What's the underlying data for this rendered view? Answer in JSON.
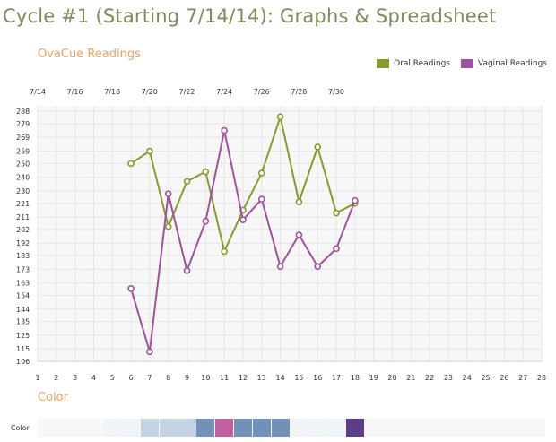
{
  "page": {
    "title": "Cycle #1 (Starting 7/14/14): Graphs & Spreadsheet",
    "chart_section_title": "OvaCue Readings",
    "color_section_title": "Color",
    "color_row_label": "Color"
  },
  "colors": {
    "title": "#7a8d5a",
    "section": "#f0a05a",
    "oral": "#8a9a2a",
    "vaginal": "#a050a0",
    "plot_bg": "#f7f7f7",
    "grid": "#e6e6e6"
  },
  "chart_data": {
    "type": "line",
    "title": "",
    "legend": {
      "position": "top-right",
      "entries": [
        "Oral Readings",
        "Vaginal Readings"
      ]
    },
    "x": [
      1,
      2,
      3,
      4,
      5,
      6,
      7,
      8,
      9,
      10,
      11,
      12,
      13,
      14,
      15,
      16,
      17,
      18,
      19,
      20,
      21,
      22,
      23,
      24,
      25,
      26,
      27,
      28
    ],
    "xlim": [
      1,
      28
    ],
    "date_ticks": [
      {
        "day": 1,
        "label": "7/14"
      },
      {
        "day": 3,
        "label": "7/16"
      },
      {
        "day": 5,
        "label": "7/18"
      },
      {
        "day": 7,
        "label": "7/20"
      },
      {
        "day": 9,
        "label": "7/22"
      },
      {
        "day": 11,
        "label": "7/24"
      },
      {
        "day": 13,
        "label": "7/26"
      },
      {
        "day": 15,
        "label": "7/28"
      },
      {
        "day": 17,
        "label": "7/30"
      }
    ],
    "y_ticks": [
      106,
      115,
      125,
      135,
      144,
      154,
      163,
      173,
      183,
      192,
      202,
      211,
      221,
      230,
      240,
      250,
      259,
      269,
      279,
      288
    ],
    "ylim": [
      106,
      292
    ],
    "grid": true,
    "series": [
      {
        "name": "Oral Readings",
        "color": "#8a9a2a",
        "points": [
          [
            6,
            250
          ],
          [
            7,
            259
          ],
          [
            8,
            204
          ],
          [
            9,
            237
          ],
          [
            10,
            244
          ],
          [
            11,
            186
          ],
          [
            12,
            216
          ],
          [
            13,
            243
          ],
          [
            14,
            284
          ],
          [
            15,
            222
          ],
          [
            16,
            262
          ],
          [
            17,
            214
          ],
          [
            18,
            221
          ]
        ]
      },
      {
        "name": "Vaginal Readings",
        "color": "#a050a0",
        "points": [
          [
            6,
            159
          ],
          [
            7,
            113
          ],
          [
            8,
            228
          ],
          [
            9,
            172
          ],
          [
            10,
            208
          ],
          [
            11,
            274
          ],
          [
            12,
            209
          ],
          [
            13,
            224
          ],
          [
            14,
            175
          ],
          [
            15,
            198
          ],
          [
            16,
            175
          ],
          [
            17,
            188
          ],
          [
            18,
            223
          ]
        ]
      }
    ]
  },
  "color_row": {
    "cells": [
      {
        "day": 5,
        "color": "#eef4f8"
      },
      {
        "day": 6,
        "color": "#eef4f8"
      },
      {
        "day": 7,
        "color": "#c4d3e3"
      },
      {
        "day": 8,
        "color": "#c4d3e3"
      },
      {
        "day": 9,
        "color": "#c4d3e3"
      },
      {
        "day": 10,
        "color": "#7291b8"
      },
      {
        "day": 11,
        "color": "#c15fa0"
      },
      {
        "day": 12,
        "color": "#7291b8"
      },
      {
        "day": 13,
        "color": "#7291b8"
      },
      {
        "day": 14,
        "color": "#7291b8"
      },
      {
        "day": 15,
        "color": "#eef4f8"
      },
      {
        "day": 16,
        "color": "#eef4f8"
      },
      {
        "day": 17,
        "color": "#eef4f8"
      },
      {
        "day": 18,
        "color": "#5d3d87"
      }
    ]
  }
}
